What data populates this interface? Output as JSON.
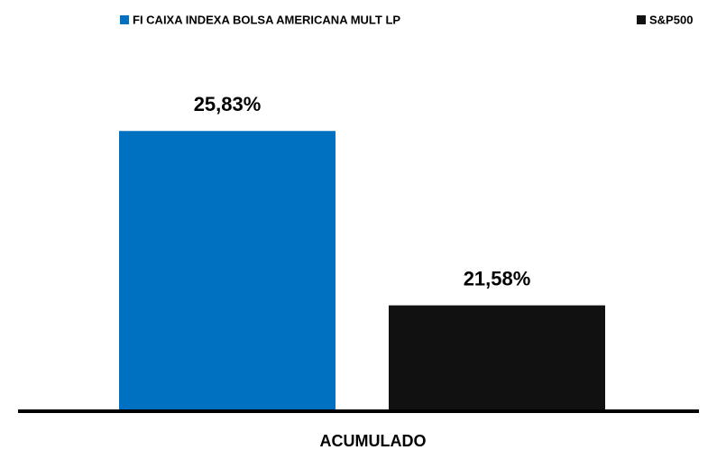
{
  "chart_data": {
    "type": "bar",
    "categories": [
      "ACUMULADO"
    ],
    "series": [
      {
        "name": "FI CAIXA INDEXA BOLSA AMERICANA MULT LP",
        "color": "#0070c0",
        "values": [
          25.83
        ],
        "value_labels": [
          "25,83%"
        ]
      },
      {
        "name": "S&P500",
        "color": "#111111",
        "values": [
          21.58
        ],
        "value_labels": [
          "21,58%"
        ]
      }
    ],
    "ylim": [
      19,
      27
    ],
    "legend": "top"
  }
}
